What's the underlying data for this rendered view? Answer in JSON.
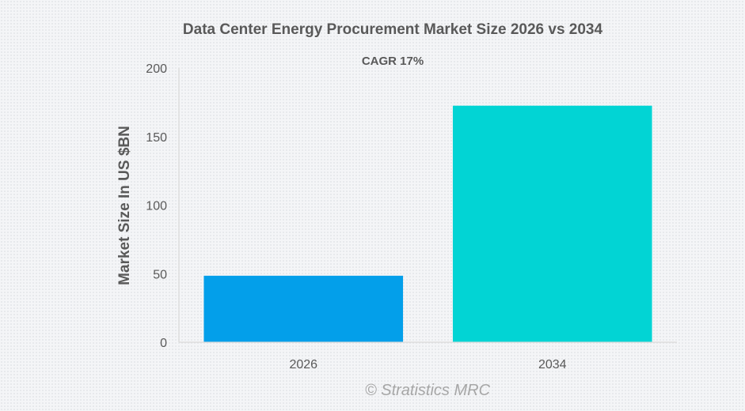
{
  "chart_data": {
    "type": "bar",
    "title": "Data Center Energy Procurement Market Size 2026 vs 2034",
    "subtitle": "CAGR 17%",
    "xlabel": "",
    "ylabel": "Market Size In US $BN",
    "categories": [
      "2026",
      "2034"
    ],
    "values": [
      48.5,
      172.5
    ],
    "colors": [
      "#039fea",
      "#02d4d4"
    ],
    "ylim": [
      0,
      200
    ],
    "yticks": [
      0,
      50,
      100,
      150,
      200
    ],
    "ytick_labels": [
      "0",
      "50",
      "100",
      "150",
      "200"
    ],
    "grid": false,
    "legend": "none",
    "watermark": "© Stratistics MRC"
  },
  "colors": {
    "text": "#595959",
    "axis": "#d9d9d9",
    "watermark": "#a6a6a6"
  }
}
